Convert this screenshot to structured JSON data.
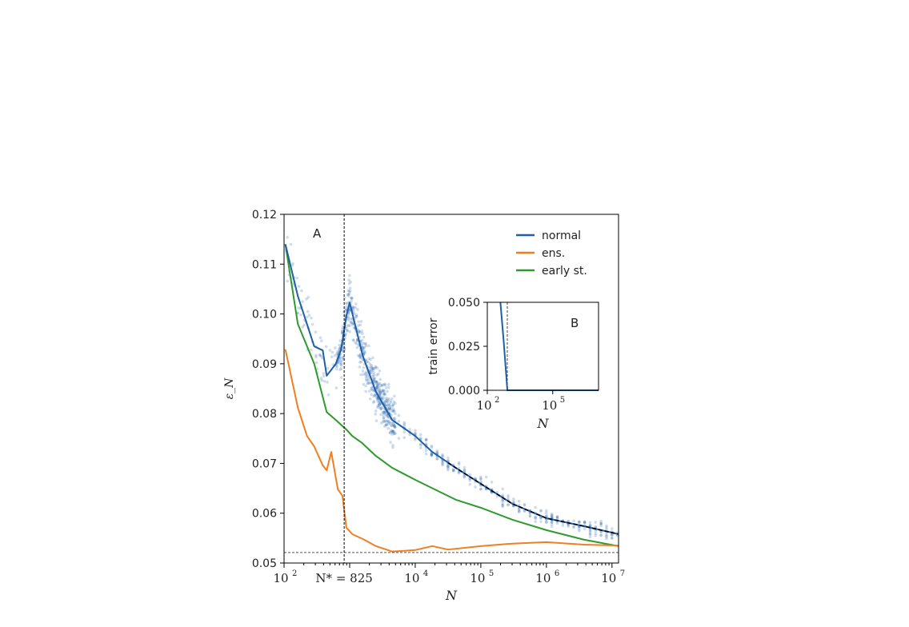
{
  "chart_data": {
    "type": "line",
    "panel_label": "A",
    "xlabel": "N",
    "ylabel": "ε_N",
    "xscale": "log",
    "xlim_log10": [
      2,
      7.1
    ],
    "ylim": [
      0.05,
      0.12
    ],
    "yticks": [
      "0.05",
      "0.06",
      "0.07",
      "0.08",
      "0.09",
      "0.10",
      "0.11",
      "0.12"
    ],
    "xticks": [
      {
        "log10": 2,
        "label": "10",
        "exp": "2"
      },
      {
        "log10": 4,
        "label": "10",
        "exp": "4"
      },
      {
        "log10": 5,
        "label": "10",
        "exp": "5"
      },
      {
        "log10": 6,
        "label": "10",
        "exp": "6"
      },
      {
        "log10": 7,
        "label": "10",
        "exp": "7"
      }
    ],
    "nstar": {
      "value": 825,
      "label": "N* = 825"
    },
    "asymptote": 0.0521,
    "legend": {
      "placement": "top-right",
      "entries": [
        {
          "name": "normal",
          "color": "#1f5fa8"
        },
        {
          "name": "ens.",
          "color": "#f07f22"
        },
        {
          "name": "early st.",
          "color": "#2e9a2e"
        }
      ]
    },
    "series": [
      {
        "name": "normal",
        "color": "#1f5fa8",
        "log10N": [
          2.02,
          2.21,
          2.46,
          2.59,
          2.65,
          2.79,
          2.87,
          2.95,
          3.0,
          3.05,
          3.2,
          3.4,
          3.65,
          4.0,
          4.26,
          4.62,
          5.0,
          5.48,
          6.0,
          6.57,
          7.1
        ],
        "eps": [
          0.114,
          0.1036,
          0.0935,
          0.0927,
          0.0876,
          0.09,
          0.0929,
          0.0996,
          0.1023,
          0.0996,
          0.0916,
          0.0844,
          0.0787,
          0.0755,
          0.0723,
          0.0691,
          0.0659,
          0.0619,
          0.059,
          0.0574,
          0.0558
        ]
      },
      {
        "name": "ens.",
        "color": "#f07f22",
        "log10N": [
          2.02,
          2.21,
          2.35,
          2.46,
          2.59,
          2.65,
          2.72,
          2.82,
          2.89,
          2.95,
          3.04,
          3.22,
          3.4,
          3.65,
          4.0,
          4.26,
          4.5,
          5.0,
          5.48,
          6.0,
          6.57,
          7.1
        ],
        "eps": [
          0.0929,
          0.0812,
          0.0755,
          0.0734,
          0.0696,
          0.0686,
          0.0723,
          0.0648,
          0.0635,
          0.0571,
          0.0558,
          0.0547,
          0.0534,
          0.0523,
          0.0526,
          0.0534,
          0.0527,
          0.0534,
          0.0539,
          0.0542,
          0.0537,
          0.0535
        ]
      },
      {
        "name": "early st.",
        "color": "#2e9a2e",
        "log10N": [
          2.02,
          2.21,
          2.46,
          2.65,
          2.79,
          2.95,
          3.04,
          3.18,
          3.4,
          3.65,
          4.0,
          4.62,
          5.0,
          5.48,
          6.0,
          6.57,
          7.1
        ],
        "eps": [
          0.114,
          0.098,
          0.09,
          0.0803,
          0.0787,
          0.0768,
          0.0755,
          0.0742,
          0.0715,
          0.0691,
          0.0667,
          0.0627,
          0.0611,
          0.0587,
          0.0566,
          0.0547,
          0.0534
        ]
      }
    ],
    "fit": {
      "style": "dashed",
      "color": "#000000",
      "log10N": [
        4.5,
        5.0,
        5.48,
        6.0,
        6.57,
        7.1
      ],
      "eps": [
        0.0701,
        0.0659,
        0.0619,
        0.059,
        0.0574,
        0.0558
      ]
    },
    "inset": {
      "panel_label": "B",
      "ylabel": "train error",
      "xlabel": "N",
      "ylim": [
        0,
        0.05
      ],
      "yticks": [
        "0.000",
        "0.025",
        "0.050"
      ],
      "xticks": [
        {
          "log10": 2,
          "label": "10",
          "exp": "2"
        },
        {
          "log10": 5,
          "label": "10",
          "exp": "5"
        }
      ],
      "xlim_log10": [
        2,
        7.1
      ],
      "series": {
        "name": "normal",
        "color": "#1f5fa8",
        "log10N": [
          2.6,
          2.75,
          2.92,
          3.2,
          4,
          5,
          6,
          7.1
        ],
        "train_error": [
          0.05,
          0.028,
          0.0,
          0.0,
          0.0,
          0.0,
          0.0,
          0.0
        ]
      }
    }
  }
}
